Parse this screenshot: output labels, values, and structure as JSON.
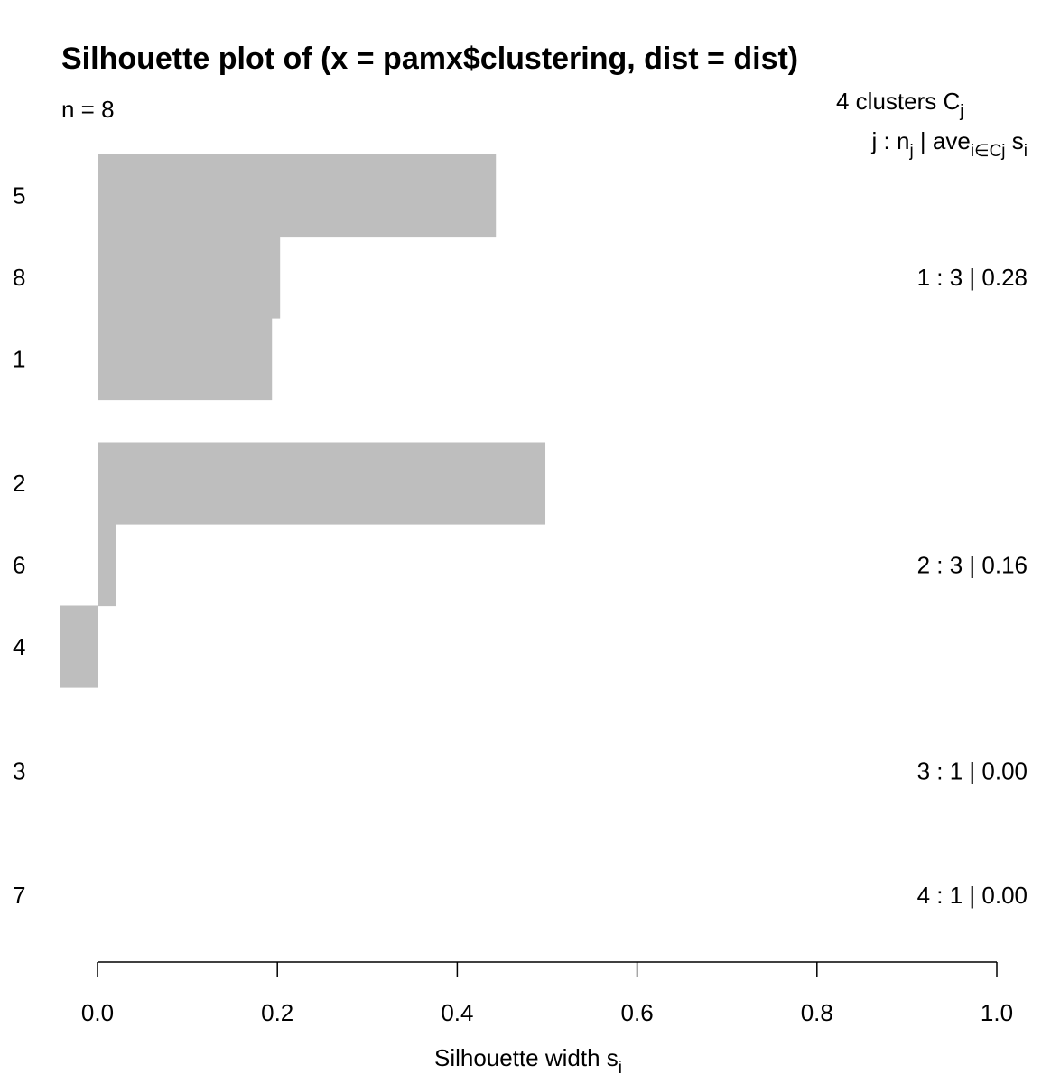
{
  "chart_data": {
    "type": "bar",
    "title": "Silhouette plot of (x = pamx$clustering, dist = dist)",
    "subtitle": "n = 8",
    "xlabel": "Silhouette width s",
    "xlabel_subscript": "i",
    "xlim": [
      0,
      1
    ],
    "x_ticks": [
      "0.0",
      "0.2",
      "0.4",
      "0.6",
      "0.8",
      "1.0"
    ],
    "orientation": "horizontal",
    "bar_color": "#bebebe",
    "legend_header": {
      "line1_main": "4  clusters  C",
      "line1_sub": "j",
      "line2_a": "j :  n",
      "line2_a_sub": "j",
      "line2_b": " | ave",
      "line2_b_sub": "i∈Cj",
      "line2_c": "  s",
      "line2_c_sub": "i"
    },
    "categories": [
      "5",
      "8",
      "1",
      "2",
      "6",
      "4",
      "3",
      "7"
    ],
    "values": [
      0.443,
      0.203,
      0.194,
      0.498,
      0.021,
      -0.042,
      0.0,
      0.0
    ],
    "cluster_of": [
      1,
      1,
      1,
      2,
      2,
      2,
      3,
      4
    ],
    "cluster_summaries": [
      {
        "label": "1 :   3  |  0.28"
      },
      {
        "label": "2 :   3  |  0.16"
      },
      {
        "label": "3 :   1  |  0.00"
      },
      {
        "label": "4 :   1  |  0.00"
      }
    ]
  }
}
